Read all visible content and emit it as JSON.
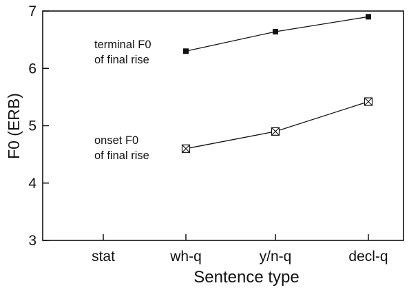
{
  "chart_data": {
    "type": "line",
    "title": "",
    "xlabel": "Sentence type",
    "ylabel": "F0 (ERB)",
    "categories": [
      "stat",
      "wh-q",
      "y/n-q",
      "decl-q"
    ],
    "ylim": [
      3,
      7
    ],
    "yticks": [
      "3",
      "4",
      "5",
      "6",
      "7"
    ],
    "grid": false,
    "series": [
      {
        "name": "terminal F0 of final rise",
        "label_lines": [
          "terminal F0",
          "of final rise"
        ],
        "marker": "filled-square",
        "values": [
          null,
          6.3,
          6.64,
          6.9
        ]
      },
      {
        "name": "onset F0 of final rise",
        "label_lines": [
          "onset F0",
          "of final rise"
        ],
        "marker": "crossed-square",
        "values": [
          null,
          4.6,
          4.9,
          5.42
        ]
      }
    ]
  }
}
